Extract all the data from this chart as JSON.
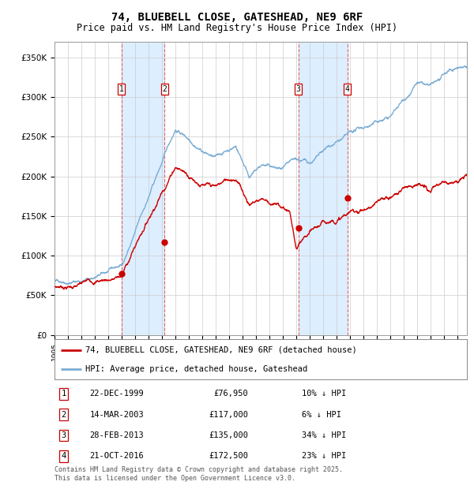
{
  "title": "74, BLUEBELL CLOSE, GATESHEAD, NE9 6RF",
  "subtitle": "Price paid vs. HM Land Registry's House Price Index (HPI)",
  "ylabel_ticks": [
    "£0",
    "£50K",
    "£100K",
    "£150K",
    "£200K",
    "£250K",
    "£300K",
    "£350K"
  ],
  "ytick_vals": [
    0,
    50000,
    100000,
    150000,
    200000,
    250000,
    300000,
    350000
  ],
  "ylim": [
    0,
    370000
  ],
  "xlim_start": 1995.0,
  "xlim_end": 2025.7,
  "sale_points": [
    {
      "label": "1",
      "date_num": 1999.97,
      "price": 76950,
      "text": "22-DEC-1999",
      "price_str": "£76,950",
      "pct": "10% ↓ HPI"
    },
    {
      "label": "2",
      "date_num": 2003.2,
      "price": 117000,
      "text": "14-MAR-2003",
      "price_str": "£117,000",
      "pct": "6% ↓ HPI"
    },
    {
      "label": "3",
      "date_num": 2013.16,
      "price": 135000,
      "text": "28-FEB-2013",
      "price_str": "£135,000",
      "pct": "34% ↓ HPI"
    },
    {
      "label": "4",
      "date_num": 2016.8,
      "price": 172500,
      "text": "21-OCT-2016",
      "price_str": "£172,500",
      "pct": "23% ↓ HPI"
    }
  ],
  "hpi_color": "#7aadd4",
  "price_color": "#cc0000",
  "shade_color": "#ddeeff",
  "grid_color": "#cccccc",
  "bg_color": "#ffffff",
  "title_fontsize": 10,
  "subtitle_fontsize": 8.5,
  "legend_label_red": "74, BLUEBELL CLOSE, GATESHEAD, NE9 6RF (detached house)",
  "legend_label_blue": "HPI: Average price, detached house, Gateshead",
  "footer": "Contains HM Land Registry data © Crown copyright and database right 2025.\nThis data is licensed under the Open Government Licence v3.0."
}
